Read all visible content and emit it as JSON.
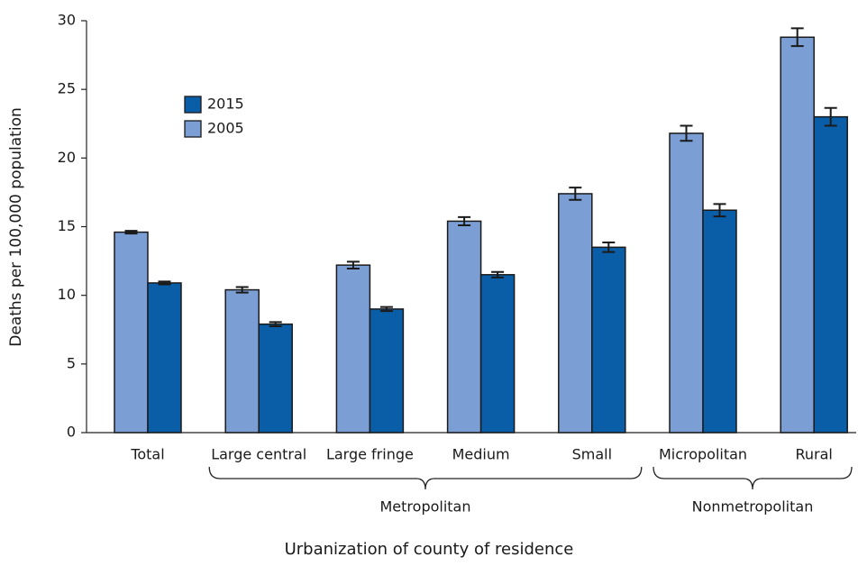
{
  "chart_data": {
    "type": "bar",
    "x_label": "Urbanization of county of residence",
    "y_label": "Deaths per 100,000 population",
    "categories": [
      "Total",
      "Large central",
      "Large fringe",
      "Medium",
      "Small",
      "Micropolitan",
      "Rural"
    ],
    "groups": [
      {
        "label": "Metropolitan",
        "span": [
          1,
          4
        ]
      },
      {
        "label": "Nonmetropolitan",
        "span": [
          5,
          6
        ]
      }
    ],
    "series": [
      {
        "name": "2005",
        "color": "#7b9fd4",
        "values": [
          14.6,
          10.4,
          12.2,
          15.4,
          17.4,
          21.8,
          28.8
        ],
        "errors": [
          0.1,
          0.2,
          0.25,
          0.3,
          0.45,
          0.55,
          0.65
        ]
      },
      {
        "name": "2015",
        "color": "#0a5ea8",
        "values": [
          10.9,
          7.9,
          9.0,
          11.5,
          13.5,
          16.2,
          23.0
        ],
        "errors": [
          0.1,
          0.15,
          0.15,
          0.2,
          0.35,
          0.45,
          0.65
        ]
      }
    ],
    "ylim": [
      0,
      30
    ],
    "yticks": [
      0,
      5,
      10,
      15,
      20,
      25,
      30
    ],
    "grid": false,
    "legend": "upper left"
  }
}
